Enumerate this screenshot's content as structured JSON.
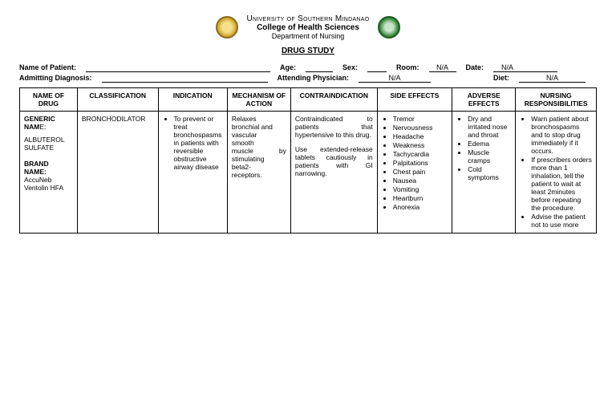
{
  "header": {
    "university": "University of Southern Mindanao",
    "college": "College of Health Sciences",
    "department": "Department of Nursing",
    "title": "DRUG STUDY"
  },
  "info": {
    "name_of_patient_label": "Name of Patient:",
    "name_of_patient": "",
    "age_label": "Age:",
    "age": "",
    "sex_label": "Sex:",
    "sex": "",
    "room_label": "Room:",
    "room": "N/A",
    "date_label": "Date:",
    "date": "N/A",
    "admitting_dx_label": "Admitting Diagnosis:",
    "admitting_dx": "",
    "attending_label": "Attending Physician:",
    "attending": "N/A",
    "diet_label": "Diet:",
    "diet": "N/A"
  },
  "columns": {
    "c0": "NAME OF DRUG",
    "c1": "CLASSIFICATION",
    "c2": "INDICATION",
    "c3": "MECHANISM OF ACTION",
    "c4": "CONTRAINDICATION",
    "c5": "SIDE EFFECTS",
    "c6": "ADVERSE EFFECTS",
    "c7": "NURSING RESPONSIBILITIES"
  },
  "row": {
    "drug": {
      "generic_label": "GENERIC NAM",
      "generic_e": "E:",
      "generic_value": "ALBUTEROL SULFATE",
      "brand_label": "BRAND NAME:",
      "brand_value1": "AccuNeb",
      "brand_value2": "Ventolin HFA"
    },
    "classification": "BRONCHODILATOR",
    "indication_item": "To prevent or treat bronchospasms in patients with reversible obstructive airway disease",
    "mechanism": {
      "l1": "Relaxes",
      "l2": "bronchial and",
      "l3": "vascular",
      "l4": "smooth",
      "l5a": "muscle",
      "l5b": "by",
      "l6": "stimulating",
      "l7": "beta2-",
      "l8": "receptors."
    },
    "contra": {
      "p1": "Contraindicated to patients that hypertensive to this drug.",
      "p2": "Use extended-release tablets cautiously in patients with GI narrowing."
    },
    "side_effects": [
      "Tremor",
      "Nervousness",
      "Headache",
      "Weakness",
      "Tachycardia",
      "Palpitations",
      "Chest pain",
      "Nausea",
      "Vomiting",
      "Heartburn",
      "Anorexia"
    ],
    "adverse": [
      "Dry and irritated nose and throat",
      "Edema",
      "Muscle cramps",
      "Cold symptoms"
    ],
    "nursing": [
      "Warn patient about bronchospasms and to stop drug immediately if it occurs.",
      "If prescribers orders more than 1 inhalation, tell the patient to wait at least 2minutes before repeating the procedure.",
      "Advise the patient not to use more"
    ]
  },
  "col_widths": [
    "10%",
    "14%",
    "12%",
    "11%",
    "15%",
    "13%",
    "11%",
    "14%"
  ]
}
